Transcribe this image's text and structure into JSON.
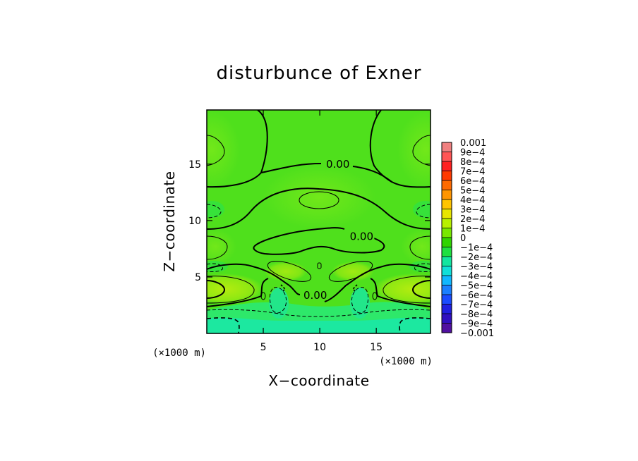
{
  "chart_data": {
    "type": "heatmap",
    "title": "disturbunce of Exner",
    "xlabel": "X−coordinate",
    "ylabel": "Z−coordinate",
    "x_unit": "(×1000 m)",
    "y_unit": "(×1000 m)",
    "xlim": [
      0,
      19.8
    ],
    "ylim": [
      0,
      19.8
    ],
    "x_ticks": [
      5,
      10,
      15
    ],
    "y_ticks": [
      5,
      10,
      15
    ],
    "x_tick_labels": [
      "5",
      "10",
      "15"
    ],
    "y_tick_labels": [
      "5",
      "10",
      "15"
    ],
    "contour_labels": [
      {
        "text": "0.00",
        "x": 11.6,
        "z": 14.8
      },
      {
        "text": "0.00",
        "x": 13.7,
        "z": 8.4
      },
      {
        "text": "0.00",
        "x": 9.6,
        "z": 3.2
      }
    ],
    "colorbar": {
      "levels": [
        -0.001,
        -0.0009,
        -0.0008,
        -0.0007,
        -0.0006,
        -0.0005,
        -0.0004,
        -0.0003,
        -0.0002,
        -0.0001,
        0,
        0.0001,
        0.0002,
        0.0003,
        0.0004,
        0.0005,
        0.0006,
        0.0007,
        0.0008,
        0.0009,
        0.001
      ],
      "labels": [
        "0.001",
        "9e−4",
        "8e−4",
        "7e−4",
        "6e−4",
        "5e−4",
        "4e−4",
        "3e−4",
        "2e−4",
        "1e−4",
        "0",
        "−1e−4",
        "−2e−4",
        "−3e−4",
        "−4e−4",
        "−5e−4",
        "−6e−4",
        "−7e−4",
        "−8e−4",
        "−9e−4",
        "−0.001"
      ],
      "colors": [
        "#f08080",
        "#ff5555",
        "#ff2020",
        "#ff3a00",
        "#ff6a00",
        "#ff9500",
        "#ffc400",
        "#e8e600",
        "#b7f000",
        "#78e800",
        "#2fd400",
        "#1ee040",
        "#12e6a0",
        "#10e0d8",
        "#10b8ff",
        "#1a80ff",
        "#1a4cff",
        "#2020e0",
        "#3010c0",
        "#5010a0"
      ]
    },
    "field_colors": {
      "background": "#4ee01a",
      "positive_band": "#6ee81a",
      "strong_positive": "#a6ec14",
      "negative_low": "#1ee87a",
      "negative_strong": "#14e8a8"
    },
    "grid": false
  }
}
